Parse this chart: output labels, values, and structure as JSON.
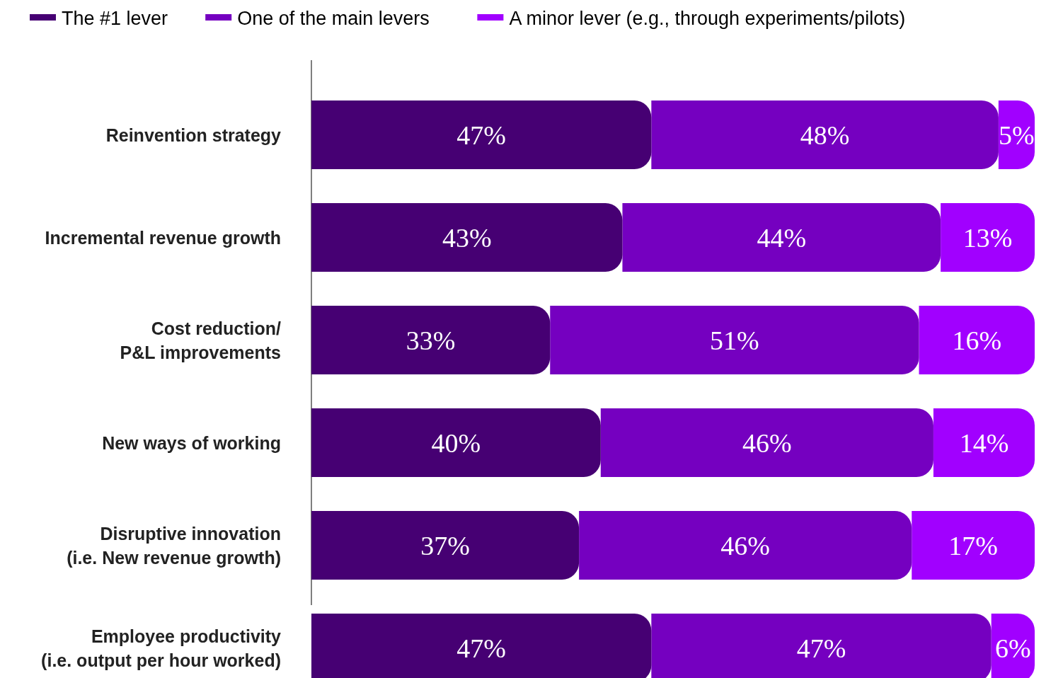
{
  "chart_data": {
    "type": "bar",
    "orientation": "horizontal",
    "stacked": true,
    "legend": "top",
    "categories": [
      "Reinvention strategy",
      "Incremental revenue growth",
      "Cost reduction/\nP&L improvements",
      "New ways of working",
      "Disruptive innovation\n(i.e. New revenue growth)",
      "Employee productivity\n(i.e. output per hour worked)"
    ],
    "series": [
      {
        "name": "The #1 lever",
        "color": "#460073",
        "values": [
          47,
          43,
          33,
          40,
          37,
          47
        ],
        "value_labels": [
          "47%",
          "43%",
          "33%",
          "40%",
          "37%",
          "47%"
        ]
      },
      {
        "name": "One of the main levers",
        "color": "#7500c0",
        "values": [
          48,
          44,
          51,
          46,
          46,
          47
        ],
        "value_labels": [
          "48%",
          "44%",
          "51%",
          "46%",
          "46%",
          "47%"
        ]
      },
      {
        "name": "A minor lever (e.g., through experiments/pilots)",
        "color": "#a100ff",
        "values": [
          5,
          13,
          16,
          14,
          17,
          6
        ],
        "value_labels": [
          "5%",
          "13%",
          "16%",
          "14%",
          "17%",
          "6%"
        ]
      }
    ]
  }
}
